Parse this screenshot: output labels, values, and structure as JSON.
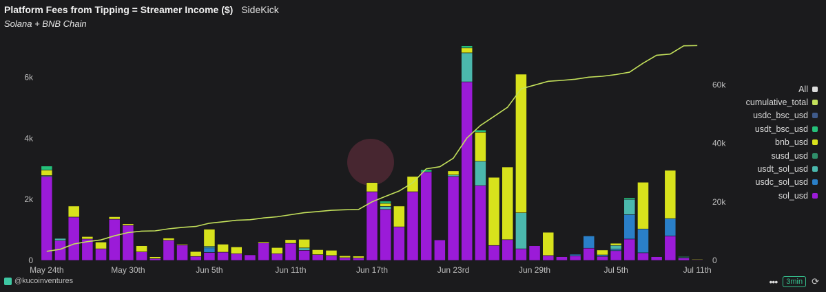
{
  "header": {
    "title": "Platform Fees from Tipping = Streamer Income ($)",
    "app_name": "SideKick",
    "subtitle": "Solana + BNB Chain"
  },
  "footer": {
    "attribution": "@kucoinventures",
    "time_badge": "3min",
    "menu_icon": "more-dots-icon",
    "refresh_icon": "refresh-icon"
  },
  "legend": {
    "all_label": "All",
    "items": [
      {
        "label": "cumulative_total",
        "color": "#c3e05b"
      },
      {
        "label": "usdc_bsc_usd",
        "color": "#3f5a8a"
      },
      {
        "label": "usdt_bsc_usd",
        "color": "#25c07a"
      },
      {
        "label": "bnb_usd",
        "color": "#d8e21c"
      },
      {
        "label": "susd_usd",
        "color": "#2f8f6a"
      },
      {
        "label": "usdt_sol_usd",
        "color": "#4bb8ad"
      },
      {
        "label": "usdc_sol_usd",
        "color": "#2a7fc8"
      },
      {
        "label": "sol_usd",
        "color": "#9b1bd8"
      }
    ]
  },
  "chart_data": {
    "type": "bar",
    "stacked": true,
    "x_tick_labels": [
      "May 24th",
      "May 30th",
      "Jun 5th",
      "Jun 11th",
      "Jun 17th",
      "Jun 23rd",
      "Jun 29th",
      "Jul 5th",
      "Jul 11th"
    ],
    "x_tick_indices": [
      0,
      6,
      12,
      18,
      24,
      30,
      36,
      42,
      48
    ],
    "y_left": {
      "ticks": [
        0,
        2000,
        4000,
        6000
      ],
      "tick_labels": [
        "0",
        "2k",
        "4k",
        "6k"
      ],
      "max": 7000
    },
    "y_right": {
      "ticks": [
        0,
        20000,
        40000,
        60000
      ],
      "tick_labels": [
        "0",
        "20k",
        "40k",
        "60k"
      ],
      "max": 73000
    },
    "grid": false,
    "legend_position": "right",
    "stack_order": [
      "sol_usd",
      "usdc_sol_usd",
      "usdt_sol_usd",
      "susd_usd",
      "bnb_usd",
      "usdt_bsc_usd",
      "usdc_bsc_usd"
    ],
    "series": [
      {
        "name": "sol_usd",
        "color": "#9b1bd8",
        "values": [
          2750,
          650,
          1420,
          700,
          380,
          1350,
          1150,
          280,
          60,
          660,
          500,
          130,
          260,
          270,
          220,
          180,
          570,
          220,
          560,
          330,
          190,
          160,
          90,
          80,
          2250,
          1670,
          1100,
          2250,
          2900,
          670,
          2750,
          5850,
          2450,
          490,
          680,
          380,
          480,
          160,
          120,
          150,
          400,
          130,
          320,
          700,
          250,
          120,
          800,
          80,
          20
        ]
      },
      {
        "name": "usdc_sol_usd",
        "color": "#2a7fc8",
        "values": [
          0,
          0,
          0,
          0,
          0,
          0,
          0,
          0,
          0,
          0,
          0,
          0,
          150,
          0,
          0,
          0,
          0,
          0,
          0,
          0,
          0,
          0,
          0,
          0,
          0,
          0,
          0,
          0,
          0,
          0,
          0,
          0,
          0,
          0,
          0,
          0,
          0,
          0,
          0,
          50,
          400,
          50,
          50,
          800,
          780,
          0,
          570,
          20,
          0
        ]
      },
      {
        "name": "usdt_sol_usd",
        "color": "#4bb8ad",
        "values": [
          30,
          70,
          0,
          0,
          0,
          0,
          0,
          0,
          0,
          0,
          0,
          0,
          50,
          0,
          0,
          0,
          0,
          0,
          0,
          80,
          0,
          0,
          0,
          0,
          0,
          100,
          0,
          0,
          0,
          0,
          50,
          950,
          800,
          0,
          0,
          1180,
          0,
          0,
          0,
          0,
          0,
          0,
          120,
          500,
          0,
          0,
          0,
          20,
          0
        ]
      },
      {
        "name": "susd_usd",
        "color": "#2f8f6a",
        "values": [
          0,
          0,
          0,
          0,
          0,
          0,
          0,
          0,
          0,
          0,
          0,
          0,
          0,
          0,
          0,
          0,
          0,
          0,
          0,
          0,
          0,
          0,
          0,
          0,
          0,
          0,
          0,
          0,
          0,
          0,
          0,
          0,
          0,
          0,
          0,
          0,
          0,
          0,
          0,
          0,
          0,
          0,
          0,
          0,
          0,
          0,
          0,
          0,
          0
        ]
      },
      {
        "name": "bnb_usd",
        "color": "#d8e21c",
        "values": [
          180,
          0,
          360,
          80,
          220,
          80,
          50,
          200,
          60,
          70,
          30,
          160,
          560,
          260,
          220,
          0,
          40,
          200,
          120,
          280,
          160,
          170,
          60,
          60,
          300,
          100,
          680,
          500,
          0,
          0,
          130,
          160,
          950,
          2230,
          2380,
          4540,
          0,
          760,
          0,
          0,
          0,
          160,
          70,
          0,
          1530,
          0,
          1580,
          0,
          20
        ]
      },
      {
        "name": "usdt_bsc_usd",
        "color": "#25c07a",
        "values": [
          130,
          0,
          0,
          0,
          0,
          0,
          0,
          0,
          0,
          0,
          0,
          0,
          0,
          0,
          0,
          0,
          0,
          0,
          0,
          0,
          0,
          0,
          0,
          0,
          0,
          70,
          0,
          0,
          70,
          0,
          0,
          70,
          70,
          0,
          0,
          0,
          0,
          0,
          0,
          0,
          0,
          0,
          0,
          50,
          0,
          0,
          0,
          20,
          0
        ]
      },
      {
        "name": "usdc_bsc_usd",
        "color": "#3f5a8a",
        "values": [
          0,
          0,
          0,
          0,
          0,
          0,
          0,
          0,
          0,
          0,
          0,
          0,
          0,
          0,
          0,
          0,
          0,
          0,
          0,
          0,
          0,
          0,
          0,
          0,
          0,
          0,
          0,
          0,
          0,
          0,
          0,
          0,
          0,
          0,
          0,
          0,
          0,
          0,
          0,
          0,
          0,
          0,
          0,
          0,
          0,
          0,
          0,
          0,
          0
        ]
      }
    ],
    "cumulative_total": {
      "name": "cumulative_total",
      "color": "#c3e05b",
      "axis": "right",
      "values": [
        3100,
        3800,
        5600,
        6400,
        7000,
        8400,
        9500,
        10000,
        10100,
        10800,
        11300,
        11600,
        12700,
        13200,
        13700,
        13900,
        14500,
        14900,
        15600,
        16300,
        16700,
        17100,
        17300,
        17400,
        20000,
        21900,
        23700,
        26500,
        31300,
        32000,
        34900,
        41800,
        46100,
        49200,
        52300,
        58600,
        59900,
        61200,
        61500,
        61900,
        62600,
        62900,
        63500,
        64300,
        67400,
        70100,
        70500,
        73300,
        73400
      ]
    }
  }
}
